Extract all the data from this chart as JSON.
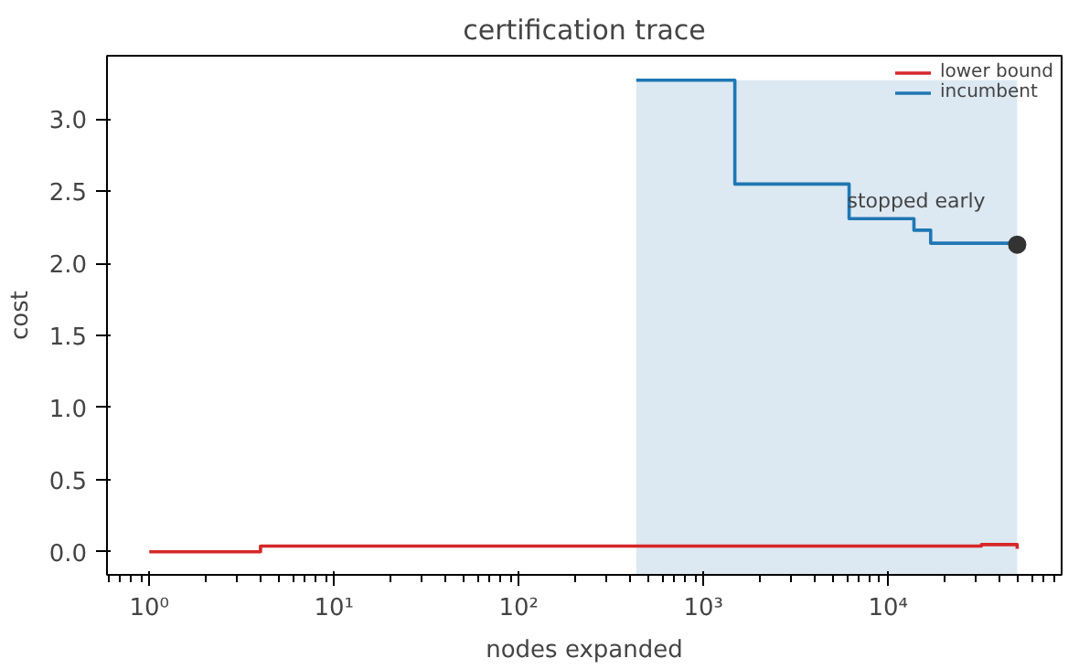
{
  "chart_data": {
    "type": "step",
    "title": "certification trace",
    "xlabel": "nodes expanded",
    "ylabel": "cost",
    "log": "x",
    "xlim": [
      0.59,
      87000
    ],
    "ylim": [
      -0.16,
      3.44
    ],
    "xticks": [
      {
        "value": 1,
        "label": "10⁰"
      },
      {
        "value": 10,
        "label": "10¹"
      },
      {
        "value": 100,
        "label": "10²"
      },
      {
        "value": 1000,
        "label": "10³"
      },
      {
        "value": 10000,
        "label": "10⁴"
      }
    ],
    "yticks": [
      {
        "value": 0,
        "label": "0.0"
      },
      {
        "value": 0.5,
        "label": "0.5"
      },
      {
        "value": 1,
        "label": "1.0"
      },
      {
        "value": 1.5,
        "label": "1.5"
      },
      {
        "value": 2,
        "label": "2.0"
      },
      {
        "value": 2.5,
        "label": "2.5"
      },
      {
        "value": 3,
        "label": "3.0"
      }
    ],
    "series": [
      {
        "name": "lower bound",
        "color": "#d62728",
        "x": [
          1,
          4,
          32000,
          50000
        ],
        "values": [
          0.0,
          0.04,
          0.05,
          0.02
        ]
      },
      {
        "name": "incumbent",
        "color": "#1f77b4",
        "x": [
          433,
          1480,
          6150,
          13800,
          17000,
          50000
        ],
        "values": [
          3.27,
          2.55,
          2.31,
          2.23,
          2.14,
          2.13
        ]
      },
      {
        "type": "scatter",
        "color": "#333333",
        "x": [
          50000
        ],
        "values": [
          2.13
        ],
        "marker": "circle"
      }
    ],
    "bands": [
      {
        "axis": "x",
        "from": 433,
        "to": 50000,
        "color": "#dce8f2"
      }
    ],
    "annotations": [
      {
        "text": "stopped early",
        "x": 6000,
        "y": 2.3
      }
    ],
    "grid": false,
    "legend": "top right"
  }
}
